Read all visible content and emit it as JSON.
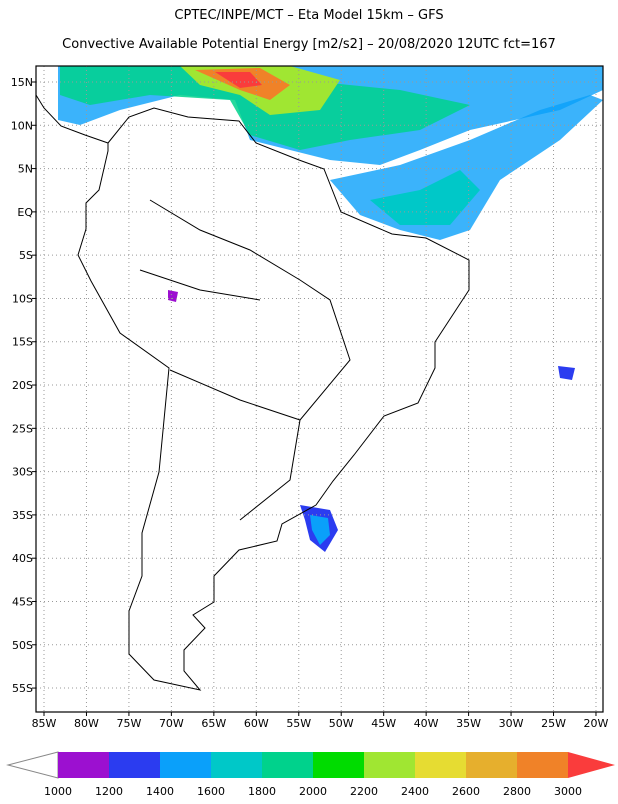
{
  "header": {
    "title": "CPTEC/INPE/MCT –  Eta Model 15km – GFS",
    "subtitle": "Convective Available Potential Energy [m2/s2] – 20/08/2020 12UTC fct=167"
  },
  "map": {
    "lon_labels": [
      "85W",
      "80W",
      "75W",
      "70W",
      "65W",
      "60W",
      "55W",
      "50W",
      "45W",
      "40W",
      "35W",
      "30W",
      "25W",
      "20W"
    ],
    "lat_labels": [
      "15N",
      "10N",
      "5N",
      "EQ",
      "5S",
      "10S",
      "15S",
      "20S",
      "25S",
      "30S",
      "35S",
      "40S",
      "45S",
      "50S",
      "55S"
    ],
    "grid": true
  },
  "colorbar": {
    "levels": [
      1000,
      1200,
      1400,
      1600,
      1800,
      2000,
      2200,
      2400,
      2600,
      2800,
      3000
    ],
    "colors": [
      "#9c10d0",
      "#2b3cf0",
      "#0aa0fa",
      "#00c8c8",
      "#00d28c",
      "#00dc00",
      "#a0e632",
      "#e6dc32",
      "#e6af2d",
      "#f08228"
    ],
    "under_color": "#ffffff",
    "over_color": "#fa3c3c"
  }
}
